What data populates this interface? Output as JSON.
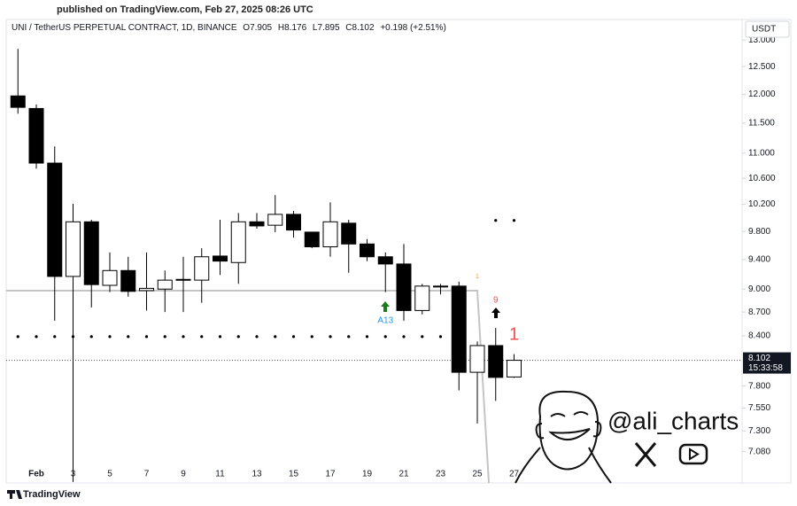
{
  "header": {
    "published": "published on TradingView.com, Feb 27, 2025 08:26 UTC",
    "footer": "TradingView",
    "watermark": "@ali_charts"
  },
  "chart_data": {
    "type": "candlestick",
    "symbol": "UNI / TetherUS PERPETUAL CONTRACT, 1D, BINANCE",
    "ohlc_labels": [
      "O7.905",
      "H8.176",
      "L7.895",
      "C8.102"
    ],
    "change_label": "+0.198 (+2.51%)",
    "currency": "USDT",
    "countdown": "15:33:58",
    "categories": [
      null,
      "Feb",
      null,
      "3",
      null,
      "5",
      null,
      "7",
      null,
      "9",
      null,
      "11",
      null,
      "13",
      null,
      "15",
      null,
      "17",
      null,
      "19",
      null,
      "21",
      null,
      "23",
      null,
      "25",
      null,
      "27"
    ],
    "open": [
      11.97,
      11.75,
      10.84,
      9.17,
      9.94,
      9.05,
      9.25,
      8.98,
      9.0,
      9.12,
      9.12,
      9.45,
      9.36,
      9.94,
      9.89,
      10.05,
      9.79,
      9.58,
      9.92,
      9.62,
      9.44,
      9.34,
      8.72,
      9.03,
      9.04,
      7.96,
      8.28,
      7.905
    ],
    "high": [
      12.83,
      11.82,
      11.11,
      10.21,
      9.97,
      9.5,
      9.44,
      9.5,
      9.25,
      9.44,
      9.56,
      9.97,
      10.07,
      10.07,
      10.34,
      10.1,
      9.79,
      10.23,
      9.97,
      9.69,
      9.5,
      9.62,
      9.07,
      9.07,
      9.1,
      8.33,
      8.5,
      8.176
    ],
    "low": [
      11.66,
      10.75,
      8.59,
      6.77,
      8.76,
      8.96,
      8.9,
      8.72,
      8.7,
      8.7,
      8.82,
      9.19,
      9.07,
      9.84,
      9.79,
      9.71,
      9.56,
      9.44,
      9.22,
      9.38,
      8.96,
      8.59,
      8.67,
      8.93,
      7.75,
      7.38,
      7.63,
      7.895
    ],
    "close": [
      11.77,
      10.84,
      9.17,
      9.94,
      9.06,
      9.25,
      8.97,
      9.01,
      9.12,
      9.13,
      9.44,
      9.38,
      9.94,
      9.88,
      10.05,
      9.82,
      9.58,
      9.94,
      9.62,
      9.44,
      9.34,
      8.72,
      9.04,
      9.04,
      7.96,
      8.28,
      7.9,
      8.102
    ],
    "up_color": "#ffffff",
    "down_color": "#000000",
    "wick_color": "#000000",
    "support_dots": [
      8.39,
      8.39,
      8.39,
      8.39,
      8.39,
      8.39,
      8.39,
      8.39,
      8.39,
      8.39,
      8.39,
      8.39,
      8.39,
      8.39,
      8.39,
      8.39,
      8.39,
      8.39,
      8.39,
      8.39,
      8.39,
      8.39,
      8.39,
      8.39,
      null,
      null,
      null,
      null
    ],
    "resistance_dots": [
      null,
      null,
      null,
      null,
      null,
      null,
      null,
      null,
      null,
      null,
      null,
      null,
      null,
      null,
      null,
      null,
      null,
      null,
      null,
      null,
      null,
      null,
      null,
      null,
      null,
      null,
      9.96,
      9.96
    ],
    "level_line": 8.98,
    "level_color": "#c4c4c4",
    "signal_labels": [
      null,
      null,
      null,
      null,
      null,
      null,
      null,
      null,
      null,
      null,
      null,
      null,
      null,
      null,
      null,
      null,
      null,
      null,
      null,
      null,
      "A13",
      null,
      null,
      null,
      null,
      "1",
      "9",
      "1"
    ],
    "signal_colors": [
      null,
      null,
      null,
      null,
      null,
      null,
      null,
      null,
      null,
      null,
      null,
      null,
      null,
      null,
      null,
      null,
      null,
      null,
      null,
      null,
      "#2196f3",
      null,
      null,
      null,
      null,
      "#ff9800",
      "#ef5350",
      "#ef5350"
    ],
    "log_scale": true,
    "ylim": [
      6.76,
      13.4
    ],
    "yticks": [
      {
        "value": 13,
        "label": "13.000"
      },
      {
        "value": 12.5,
        "label": "12.500"
      },
      {
        "value": 12,
        "label": "12.000"
      },
      {
        "value": 11.5,
        "label": "11.500"
      },
      {
        "value": 11,
        "label": "11.000"
      },
      {
        "value": 10.6,
        "label": "10.600"
      },
      {
        "value": 10.2,
        "label": "10.200"
      },
      {
        "value": 9.8,
        "label": "9.800"
      },
      {
        "value": 9.4,
        "label": "9.400"
      },
      {
        "value": 9,
        "label": "9.000"
      },
      {
        "value": 8.7,
        "label": "8.700"
      },
      {
        "value": 8.4,
        "label": "8.400"
      },
      {
        "value": 7.8,
        "label": "7.800"
      },
      {
        "value": 7.55,
        "label": "7.550"
      },
      {
        "value": 7.3,
        "label": "7.300"
      },
      {
        "value": 7.08,
        "label": "7.080"
      }
    ]
  }
}
